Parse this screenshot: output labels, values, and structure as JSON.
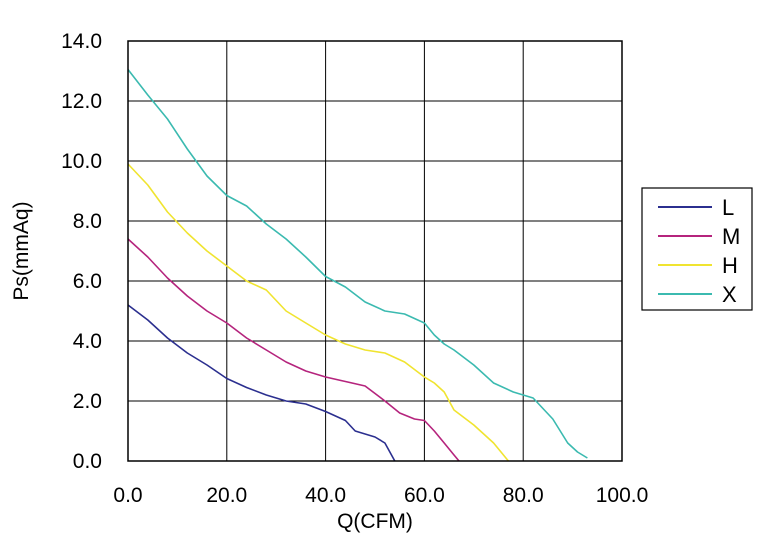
{
  "chart_data": {
    "type": "line",
    "xlabel": "Q(CFM)",
    "ylabel": "Ps(mmAq)",
    "xlim": [
      0,
      100
    ],
    "ylim": [
      0,
      14
    ],
    "x_ticks": [
      "0.0",
      "20.0",
      "40.0",
      "60.0",
      "80.0",
      "100.0"
    ],
    "y_ticks": [
      "0.0",
      "2.0",
      "4.0",
      "6.0",
      "8.0",
      "10.0",
      "12.0",
      "14.0"
    ],
    "grid": true,
    "legend_position": "right",
    "series": [
      {
        "name": "L",
        "color": "#2b2f8f",
        "points": [
          [
            0,
            5.2
          ],
          [
            4,
            4.7
          ],
          [
            8,
            4.1
          ],
          [
            12,
            3.6
          ],
          [
            16,
            3.2
          ],
          [
            20,
            2.75
          ],
          [
            24,
            2.45
          ],
          [
            28,
            2.2
          ],
          [
            32,
            2.0
          ],
          [
            36,
            1.9
          ],
          [
            40,
            1.65
          ],
          [
            44,
            1.35
          ],
          [
            46,
            1.0
          ],
          [
            50,
            0.8
          ],
          [
            52,
            0.6
          ],
          [
            54,
            0.0
          ]
        ]
      },
      {
        "name": "M",
        "color": "#b5247d",
        "points": [
          [
            0,
            7.4
          ],
          [
            4,
            6.8
          ],
          [
            8,
            6.1
          ],
          [
            12,
            5.5
          ],
          [
            16,
            5.0
          ],
          [
            20,
            4.6
          ],
          [
            24,
            4.1
          ],
          [
            28,
            3.7
          ],
          [
            32,
            3.3
          ],
          [
            36,
            3.0
          ],
          [
            40,
            2.8
          ],
          [
            44,
            2.65
          ],
          [
            48,
            2.5
          ],
          [
            52,
            2.0
          ],
          [
            55,
            1.6
          ],
          [
            58,
            1.4
          ],
          [
            60,
            1.35
          ],
          [
            62,
            1.0
          ],
          [
            64,
            0.6
          ],
          [
            66,
            0.2
          ],
          [
            67,
            0.0
          ]
        ]
      },
      {
        "name": "H",
        "color": "#f0e430",
        "points": [
          [
            0,
            9.9
          ],
          [
            4,
            9.2
          ],
          [
            8,
            8.3
          ],
          [
            12,
            7.6
          ],
          [
            16,
            7.0
          ],
          [
            20,
            6.5
          ],
          [
            24,
            6.0
          ],
          [
            28,
            5.7
          ],
          [
            32,
            5.0
          ],
          [
            36,
            4.6
          ],
          [
            40,
            4.2
          ],
          [
            44,
            3.9
          ],
          [
            48,
            3.7
          ],
          [
            52,
            3.6
          ],
          [
            56,
            3.3
          ],
          [
            60,
            2.8
          ],
          [
            62,
            2.6
          ],
          [
            64,
            2.3
          ],
          [
            66,
            1.7
          ],
          [
            70,
            1.2
          ],
          [
            74,
            0.6
          ],
          [
            77,
            0.0
          ]
        ]
      },
      {
        "name": "X",
        "color": "#3bbab0",
        "points": [
          [
            0,
            13.05
          ],
          [
            4,
            12.2
          ],
          [
            8,
            11.4
          ],
          [
            12,
            10.4
          ],
          [
            16,
            9.5
          ],
          [
            20,
            8.85
          ],
          [
            24,
            8.5
          ],
          [
            28,
            7.9
          ],
          [
            32,
            7.4
          ],
          [
            36,
            6.8
          ],
          [
            40,
            6.15
          ],
          [
            44,
            5.8
          ],
          [
            48,
            5.3
          ],
          [
            52,
            5.0
          ],
          [
            56,
            4.9
          ],
          [
            60,
            4.6
          ],
          [
            62,
            4.2
          ],
          [
            64,
            3.9
          ],
          [
            66,
            3.7
          ],
          [
            70,
            3.2
          ],
          [
            74,
            2.6
          ],
          [
            78,
            2.3
          ],
          [
            82,
            2.1
          ],
          [
            86,
            1.4
          ],
          [
            89,
            0.6
          ],
          [
            91,
            0.3
          ],
          [
            93,
            0.1
          ]
        ]
      }
    ]
  }
}
